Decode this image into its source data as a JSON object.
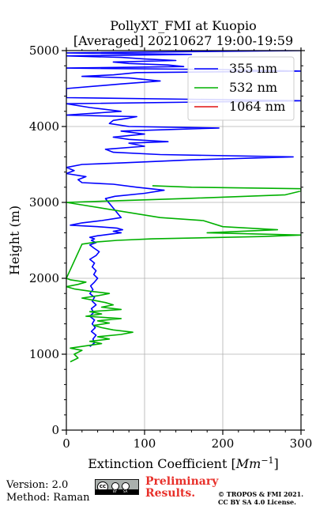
{
  "chart_data": {
    "type": "line",
    "title_line1": "PollyXT_FMI at Kuopio",
    "title_line2": "[Averaged] 20210627 19:00-19:59",
    "xlabel": "Extinction Coefficient [",
    "xlabel_unit": "Mm",
    "xlabel_exp": "−1",
    "xlabel_end": "]",
    "ylabel": "Height (m)",
    "xlim": [
      0,
      300
    ],
    "ylim": [
      0,
      5000
    ],
    "xticks": [
      0,
      100,
      200,
      300
    ],
    "yticks": [
      0,
      1000,
      2000,
      3000,
      4000,
      5000
    ],
    "grid": true,
    "legend_position": "top-right",
    "series": [
      {
        "name": "355 nm",
        "color": "#0000ff",
        "x": [
          30,
          36,
          34,
          38,
          32,
          37,
          33,
          36,
          30,
          35,
          32,
          38,
          33,
          36,
          30,
          34,
          31,
          36,
          40,
          35,
          38,
          33,
          36,
          30,
          38,
          42,
          35,
          30,
          38,
          32,
          36,
          30,
          40,
          55,
          70,
          60,
          72,
          65,
          40,
          5,
          20,
          45,
          70,
          50,
          62,
          100,
          125,
          90,
          60,
          20,
          15,
          25,
          0,
          10,
          0,
          20,
          70,
          160,
          290,
          120,
          60,
          50,
          100,
          80,
          130,
          80,
          60,
          100,
          70,
          195,
          80,
          55,
          60,
          80,
          90,
          0,
          70,
          30,
          0,
          300,
          0,
          0,
          70,
          120,
          80,
          20,
          60,
          90,
          300,
          200,
          0,
          150,
          130,
          80,
          60,
          140,
          100,
          70,
          0,
          160,
          0,
          300
        ],
        "y": [
          1100,
          1150,
          1200,
          1250,
          1300,
          1350,
          1400,
          1450,
          1500,
          1550,
          1600,
          1650,
          1700,
          1750,
          1800,
          1850,
          1900,
          1950,
          2000,
          2050,
          2100,
          2150,
          2200,
          2250,
          2300,
          2350,
          2400,
          2440,
          2470,
          2500,
          2520,
          2540,
          2560,
          2580,
          2600,
          2620,
          2640,
          2660,
          2680,
          2700,
          2730,
          2760,
          2800,
          3050,
          3080,
          3120,
          3160,
          3200,
          3240,
          3260,
          3300,
          3340,
          3380,
          3420,
          3460,
          3500,
          3520,
          3560,
          3600,
          3630,
          3660,
          3700,
          3740,
          3780,
          3800,
          3830,
          3860,
          3900,
          3940,
          3980,
          4000,
          4040,
          4080,
          4110,
          4130,
          4150,
          4200,
          4250,
          4300,
          4340,
          4380,
          4500,
          4560,
          4600,
          4640,
          4660,
          4680,
          4710,
          4730,
          4750,
          4770,
          4790,
          4810,
          4830,
          4850,
          4870,
          4890,
          4910,
          4930,
          4950,
          4970,
          5000
        ]
      },
      {
        "name": "532 nm",
        "color": "#00b000",
        "x": [
          5,
          15,
          10,
          20,
          5,
          25,
          45,
          30,
          55,
          40,
          70,
          85,
          60,
          45,
          35,
          55,
          40,
          70,
          25,
          45,
          30,
          70,
          45,
          60,
          50,
          35,
          20,
          40,
          55,
          30,
          10,
          0,
          15,
          25,
          5,
          0,
          20,
          40,
          65,
          110,
          250,
          300,
          180,
          270,
          200,
          175,
          120,
          0,
          150,
          280,
          300,
          300,
          160,
          110
        ],
        "y": [
          900,
          950,
          1000,
          1050,
          1080,
          1110,
          1140,
          1170,
          1200,
          1230,
          1260,
          1290,
          1320,
          1350,
          1380,
          1410,
          1440,
          1470,
          1500,
          1530,
          1560,
          1590,
          1620,
          1650,
          1680,
          1710,
          1740,
          1770,
          1800,
          1830,
          1860,
          1890,
          1920,
          1950,
          1980,
          2000,
          2450,
          2480,
          2500,
          2520,
          2550,
          2570,
          2600,
          2640,
          2680,
          2760,
          2800,
          3000,
          3050,
          3100,
          3150,
          3180,
          3200,
          3220
        ]
      },
      {
        "name": "1064 nm",
        "color": "#e01010",
        "x": [],
        "y": []
      }
    ]
  },
  "footer": {
    "version": "Version: 2.0",
    "method": "Method: Raman",
    "preliminary_line1": "Preliminary",
    "preliminary_line2": "Results.",
    "copyright_line1": "© TROPOS & FMI 2021.",
    "copyright_line2": "CC BY SA 4.0 License."
  },
  "license_badge": {
    "icon": "cc-by-sa-icon",
    "texts": [
      "cc",
      "BY",
      "SA"
    ]
  }
}
